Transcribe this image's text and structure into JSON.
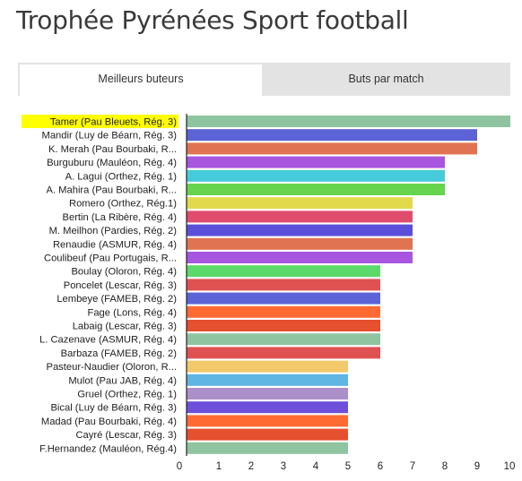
{
  "page": {
    "title": "Trophée Pyrénées Sport football"
  },
  "tabs": [
    {
      "label": "Meilleurs buteurs",
      "active": true
    },
    {
      "label": "Buts par match",
      "active": false
    }
  ],
  "highlight_color": "#ffff00",
  "chart_data": {
    "type": "bar",
    "orientation": "horizontal",
    "title": "",
    "xlabel": "",
    "ylabel": "",
    "xlim": [
      0,
      10
    ],
    "x_ticks": [
      0,
      1,
      2,
      3,
      4,
      5,
      6,
      7,
      8,
      9,
      10
    ],
    "grid": false,
    "legend": "none",
    "categories": [
      "Tamer (Pau Bleuets, Rég. 3)",
      "Mandir (Luy de Béarn, Rég. 3)",
      "K. Merah (Pau Bourbaki, R...",
      "Burguburu (Mauléon, Rég. 4)",
      "A. Lagui (Orthez, Rég. 1)",
      "A. Mahira (Pau Bourbaki, R...",
      "Romero (Orthez, Rég.1)",
      "Bertin (La Ribère, Rég. 4)",
      "M. Meilhon (Pardies, Rég. 2)",
      "Renaudie (ASMUR, Rég. 4)",
      "Coulibeuf (Pau Portugais, R...",
      "Boulay (Oloron, Rég. 4)",
      "Poncelet (Lescar, Rég. 3)",
      "Lembeye (FAMEB, Rég. 2)",
      "Fage (Lons, Rég. 4)",
      "Labaig (Lescar, Rég. 3)",
      "L. Cazenave (ASMUR, Rég. 4)",
      "Barbaza (FAMEB, Rég. 2)",
      "Pasteur-Naudier (Oloron, R...",
      "Mulot (Pau JAB, Rég. 4)",
      "Gruel (Orthez, Rég. 1)",
      "Bical (Luy de Béarn, Rég. 3)",
      "Madad (Pau Bourbaki, Rég. 4)",
      "Cayré (Lescar, Rég. 3)",
      "F.Hernandez (Mauléon, Rég.4)"
    ],
    "values": [
      10.3,
      9,
      9,
      8,
      8,
      8,
      7,
      7,
      7,
      7,
      7,
      6,
      6,
      6,
      6,
      6,
      6,
      6,
      5,
      5,
      5,
      5,
      5,
      5,
      5
    ],
    "highlighted_index": 0,
    "colors": [
      "#8fc4a0",
      "#5b63d6",
      "#e07351",
      "#a855e0",
      "#45cbd9",
      "#66d44d",
      "#e3d94d",
      "#e04c6d",
      "#5b4fd9",
      "#e07351",
      "#a855e0",
      "#5cd96b",
      "#e05252",
      "#5b63d6",
      "#ff6a33",
      "#e5502e",
      "#8fc4a0",
      "#e05252",
      "#f2c96b",
      "#5fb6e3",
      "#ab8fc9",
      "#6e4fd9",
      "#ff6a33",
      "#e5502e",
      "#8fc4a0"
    ]
  }
}
